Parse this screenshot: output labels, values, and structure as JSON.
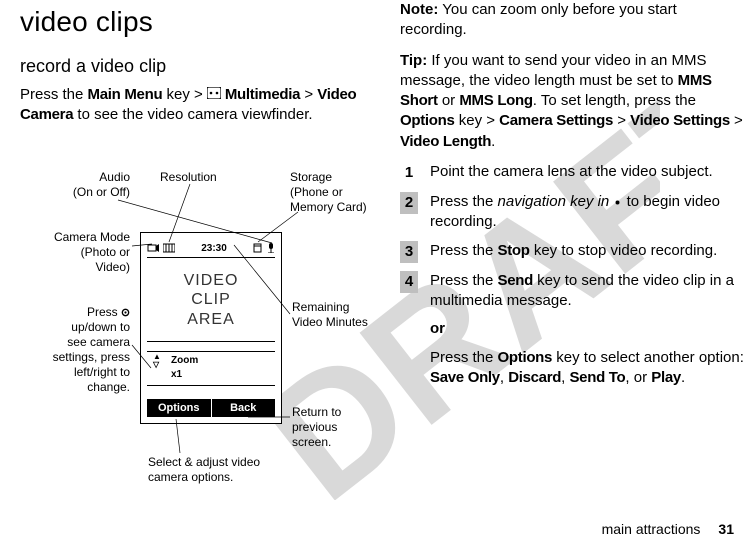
{
  "left": {
    "h1": "video clips",
    "h2": "record a video clip",
    "intro_parts": {
      "a": "Press the ",
      "mainmenu": "Main Menu",
      "b": " key > ",
      "multimedia": " Multimedia",
      "c": " > ",
      "videocamera": "Video Camera",
      "d": " to see the video camera viewfinder."
    }
  },
  "camera": {
    "time": "23:30",
    "video_area": "VIDEO\nCLIP\nAREA",
    "zoom_label": "Zoom",
    "zoom_value": "x1",
    "soft_left": "Options",
    "soft_right": "Back"
  },
  "callouts": {
    "audio": "Audio\n(On or Off)",
    "resolution": "Resolution",
    "storage": "Storage\n(Phone or\nMemory Card)",
    "camera_mode": "Camera Mode\n(Photo or\nVideo)",
    "press_nav": "Press \nup/down to\nsee camera\nsettings, press\nleft/right to\nchange.",
    "remaining": "Remaining\nVideo Minutes",
    "select_adjust": "Select & adjust video\ncamera options.",
    "return": "Return to\nprevious\nscreen."
  },
  "right": {
    "note": {
      "label": "Note:",
      "text": " You can zoom only before you start recording."
    },
    "tip": {
      "label": "Tip:",
      "a": " If you want to send your video in an MMS message, the video length must be set to ",
      "mmsshort": "MMS Short",
      "or": " or ",
      "mmslong": "MMS Long",
      "b": ". To set length, press the ",
      "options": "Options",
      "c": " key > ",
      "camset": "Camera Settings",
      "d": " > ",
      "vidset": "Video Settings",
      "e": " > ",
      "vidlen": "Video Length",
      "f": "."
    },
    "steps": [
      {
        "num": "1",
        "plain_a": "Point the camera lens at the video subject."
      },
      {
        "num": "2",
        "a": "Press the ",
        "i": "navigation key in",
        "b": " to begin video recording."
      },
      {
        "num": "3",
        "a": "Press the ",
        "bold": "Stop",
        "b": " key to stop video recording."
      },
      {
        "num": "4",
        "a": "Press the ",
        "bold": "Send",
        "b": " key to send the video clip in a multimedia message."
      }
    ],
    "or": "or",
    "alt": {
      "a": "Press the ",
      "options": "Options",
      "b": " key to select another option: ",
      "o1": "Save Only",
      "c": ", ",
      "o2": "Discard",
      "d": ", ",
      "o3": "Send To",
      "e": ", or ",
      "o4": "Play",
      "f": "."
    }
  },
  "footer": {
    "section": "main attractions",
    "page": "31"
  },
  "colors": {
    "gray": "#bfbfbf",
    "black": "#000000",
    "white": "#ffffff",
    "draft": "#d9d9d9"
  }
}
